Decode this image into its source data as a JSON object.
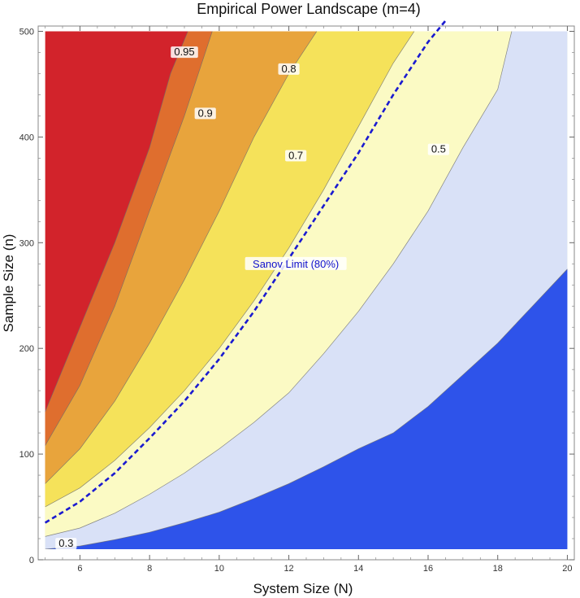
{
  "chart_data": {
    "type": "contour",
    "title": "Empirical Power Landscape      (m=4)",
    "xlabel": "System  Size  (N)",
    "ylabel": "Sample Size   (n)",
    "xlim": [
      4.8,
      20.2
    ],
    "ylim": [
      0,
      505
    ],
    "plot_x_range": [
      5,
      20
    ],
    "plot_y_range": [
      10,
      500
    ],
    "xticks": [
      6,
      8,
      10,
      12,
      14,
      16,
      18,
      20
    ],
    "yticks": [
      0,
      100,
      200,
      300,
      400,
      500
    ],
    "x_tick_labels": [
      "6",
      "8",
      "10",
      "12",
      "14",
      "16",
      "18",
      "20"
    ],
    "y_tick_labels": [
      "0",
      "100",
      "200",
      "300",
      "400",
      "500"
    ],
    "grid": false,
    "contours": [
      {
        "level": 0.3,
        "label": "0.3",
        "boundary": [
          [
            5,
            10
          ],
          [
            6,
            13
          ],
          [
            7,
            19
          ],
          [
            8,
            26
          ],
          [
            9,
            35
          ],
          [
            10,
            45
          ],
          [
            11,
            58
          ],
          [
            12,
            72
          ],
          [
            13,
            88
          ],
          [
            14,
            105
          ],
          [
            15,
            120
          ],
          [
            16,
            145
          ],
          [
            17,
            175
          ],
          [
            18,
            205
          ],
          [
            19,
            240
          ],
          [
            20,
            275
          ]
        ]
      },
      {
        "level": 0.5,
        "label": "0.5",
        "boundary": [
          [
            5,
            22
          ],
          [
            6,
            30
          ],
          [
            7,
            44
          ],
          [
            8,
            62
          ],
          [
            9,
            82
          ],
          [
            10,
            105
          ],
          [
            11,
            130
          ],
          [
            12,
            158
          ],
          [
            13,
            195
          ],
          [
            14,
            235
          ],
          [
            15,
            280
          ],
          [
            16,
            330
          ],
          [
            17,
            390
          ],
          [
            18,
            445
          ],
          [
            18.4,
            500
          ]
        ]
      },
      {
        "level": 0.7,
        "label": "0.7",
        "boundary": [
          [
            5,
            50
          ],
          [
            6,
            68
          ],
          [
            7,
            94
          ],
          [
            8,
            125
          ],
          [
            9,
            160
          ],
          [
            10,
            200
          ],
          [
            11,
            245
          ],
          [
            12,
            295
          ],
          [
            13,
            350
          ],
          [
            14,
            410
          ],
          [
            15,
            470
          ],
          [
            15.6,
            500
          ]
        ]
      },
      {
        "level": 0.8,
        "label": "0.8",
        "boundary": [
          [
            5,
            72
          ],
          [
            6,
            105
          ],
          [
            7,
            150
          ],
          [
            8,
            205
          ],
          [
            9,
            265
          ],
          [
            10,
            330
          ],
          [
            11,
            400
          ],
          [
            12,
            460
          ],
          [
            12.8,
            500
          ]
        ]
      },
      {
        "level": 0.9,
        "label": "0.9",
        "boundary": [
          [
            5,
            108
          ],
          [
            6,
            165
          ],
          [
            7,
            240
          ],
          [
            8,
            330
          ],
          [
            9,
            420
          ],
          [
            9.8,
            500
          ]
        ]
      },
      {
        "level": 0.95,
        "label": "0.95",
        "boundary": [
          [
            5,
            140
          ],
          [
            6,
            220
          ],
          [
            7,
            300
          ],
          [
            8,
            390
          ],
          [
            8.6,
            460
          ],
          [
            9.1,
            500
          ]
        ]
      }
    ],
    "fill_colors": {
      "below_0.3": "#2e53ea",
      "0.3_0.5": "#d9e1f7",
      "0.5_0.7": "#fbfac4",
      "0.7_0.8": "#f5e25a",
      "0.8_0.9": "#e8a43c",
      "0.9_0.95": "#df6e2e",
      "above_0.95": "#d2232b"
    },
    "sanov_curve": {
      "label": "Sanov Limit (80%)",
      "color": "#1a1ad0",
      "x": [
        5,
        6,
        7,
        8,
        9,
        10,
        11,
        12,
        13,
        14,
        15,
        16,
        16.5
      ],
      "y": [
        35,
        55,
        82,
        115,
        150,
        190,
        235,
        285,
        335,
        385,
        440,
        490,
        510
      ]
    }
  }
}
